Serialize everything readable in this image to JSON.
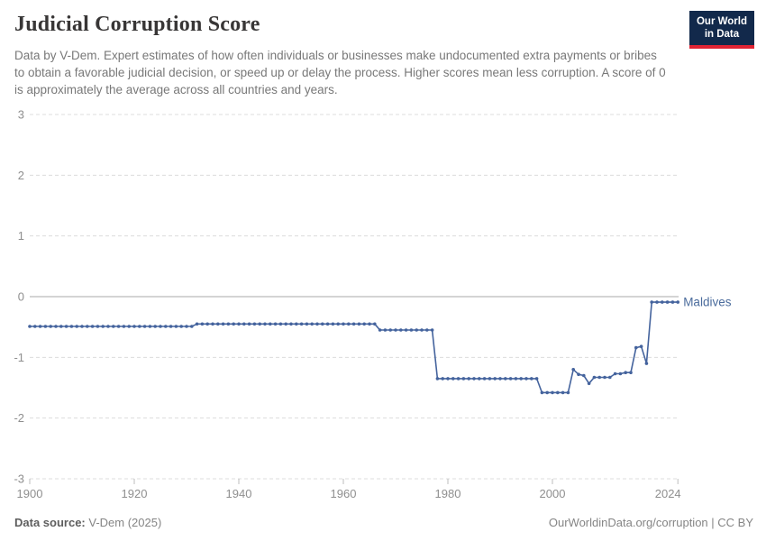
{
  "header": {
    "title": "Judicial Corruption Score",
    "subtitle": "Data by V-Dem. Expert estimates of how often individuals or businesses make undocumented extra payments or bribes to obtain a favorable judicial decision, or speed up or delay the process. Higher scores mean less corruption. A score of 0 is approximately the average across all countries and years.",
    "logo": {
      "line1": "Our World",
      "line2": "in Data"
    }
  },
  "footer": {
    "source_label": "Data source:",
    "source_value": " V-Dem (2025)",
    "attribution": "OurWorldinData.org/corruption | CC BY"
  },
  "colors": {
    "line": "#44639d",
    "entity_label": "#4a6b9c",
    "grid": "#dcdcdc",
    "zero_line": "#a8a8a8",
    "axis_text": "#8f8f8f",
    "tick_mark": "#bdbdbd",
    "logo_bg": "#12294b",
    "logo_bar": "#e02333",
    "title": "#383636",
    "subtitle": "#787878"
  },
  "chart_data": {
    "type": "line",
    "title": "Judicial Corruption Score",
    "entity": "Maldives",
    "xlabel": "",
    "ylabel": "",
    "xlim": [
      1900,
      2024
    ],
    "ylim": [
      -3,
      3
    ],
    "x_ticks": [
      1900,
      1920,
      1940,
      1960,
      1980,
      2000,
      2024
    ],
    "y_ticks": [
      3,
      2,
      1,
      0,
      -1,
      -2,
      -3
    ],
    "grid": true,
    "legend_position": "inline-right-of-line",
    "resolution": "annual",
    "series": [
      {
        "name": "Maldives",
        "segments": [
          {
            "from": 1900,
            "to": 1931,
            "value": -0.49
          },
          {
            "from": 1932,
            "to": 1966,
            "value": -0.45
          },
          {
            "from": 1967,
            "to": 1977,
            "value": -0.55
          },
          {
            "from": 1978,
            "to": 1997,
            "value": -1.35
          },
          {
            "from": 1998,
            "to": 2003,
            "value": -1.58
          },
          {
            "from": 2004,
            "to": 2004,
            "value": -1.2
          },
          {
            "from": 2005,
            "to": 2005,
            "value": -1.28
          },
          {
            "from": 2006,
            "to": 2006,
            "value": -1.3
          },
          {
            "from": 2007,
            "to": 2007,
            "value": -1.43
          },
          {
            "from": 2008,
            "to": 2011,
            "value": -1.33
          },
          {
            "from": 2012,
            "to": 2013,
            "value": -1.27
          },
          {
            "from": 2014,
            "to": 2015,
            "value": -1.25
          },
          {
            "from": 2016,
            "to": 2016,
            "value": -0.84
          },
          {
            "from": 2017,
            "to": 2017,
            "value": -0.82
          },
          {
            "from": 2018,
            "to": 2018,
            "value": -1.1
          },
          {
            "from": 2019,
            "to": 2024,
            "value": -0.09
          }
        ]
      }
    ]
  }
}
